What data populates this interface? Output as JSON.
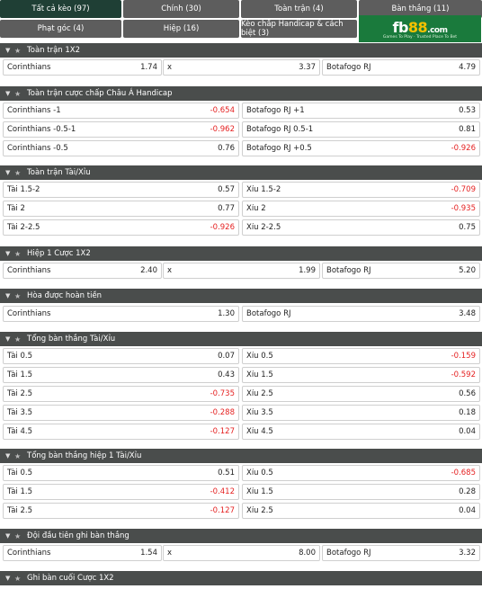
{
  "tabs": [
    {
      "label": "Tất cả kèo (97)",
      "active": true
    },
    {
      "label": "Chính (30)"
    },
    {
      "label": "Toàn trận (4)"
    },
    {
      "label": "Bàn thắng (11)"
    },
    {
      "label": "Phạt góc (4)"
    },
    {
      "label": "Hiệp (16)"
    },
    {
      "label": "Kèo chấp Handicap & cách biệt (3)"
    }
  ],
  "logo": {
    "text": "fb88",
    "brand": "fb",
    "num": "88",
    "suffix": ".com",
    "tagline": "Games To Play · Trusted Place To Bet"
  },
  "colors": {
    "header_bg": "#4a4d4c",
    "tab_bg": "#5d5d5d",
    "tab_active": "#1f3f35",
    "negative": "#e52222",
    "logo_bg": "#1a7a3c"
  },
  "sections": [
    {
      "title": "Toàn trận 1X2",
      "rows": [
        [
          {
            "label": "Corinthians",
            "odd": "1.74"
          },
          {
            "label": "x",
            "odd": "3.37"
          },
          {
            "label": "Botafogo RJ",
            "odd": "4.79"
          }
        ]
      ]
    },
    {
      "title": "Toàn trận cược chấp Châu Á Handicap",
      "rows": [
        [
          {
            "label": "Corinthians -1",
            "odd": "-0.654"
          },
          {
            "label": "Botafogo RJ +1",
            "odd": "0.53"
          }
        ],
        [
          {
            "label": "Corinthians -0.5-1",
            "odd": "-0.962"
          },
          {
            "label": "Botafogo RJ 0.5-1",
            "odd": "0.81"
          }
        ],
        [
          {
            "label": "Corinthians -0.5",
            "odd": "0.76"
          },
          {
            "label": "Botafogo RJ +0.5",
            "odd": "-0.926"
          }
        ]
      ]
    },
    {
      "title": "Toàn trận Tài/Xỉu",
      "rows": [
        [
          {
            "label": "Tài 1.5-2",
            "odd": "0.57"
          },
          {
            "label": "Xỉu 1.5-2",
            "odd": "-0.709"
          }
        ],
        [
          {
            "label": "Tài 2",
            "odd": "0.77"
          },
          {
            "label": "Xỉu 2",
            "odd": "-0.935"
          }
        ],
        [
          {
            "label": "Tài 2-2.5",
            "odd": "-0.926"
          },
          {
            "label": "Xỉu 2-2.5",
            "odd": "0.75"
          }
        ]
      ]
    },
    {
      "title": "Hiệp 1 Cược 1X2",
      "rows": [
        [
          {
            "label": "Corinthians",
            "odd": "2.40"
          },
          {
            "label": "x",
            "odd": "1.99"
          },
          {
            "label": "Botafogo RJ",
            "odd": "5.20"
          }
        ]
      ]
    },
    {
      "title": "Hòa được hoàn tiền",
      "rows": [
        [
          {
            "label": "Corinthians",
            "odd": "1.30"
          },
          {
            "label": "Botafogo RJ",
            "odd": "3.48"
          }
        ]
      ]
    },
    {
      "title": "Tổng bàn thắng Tài/Xỉu",
      "rows": [
        [
          {
            "label": "Tài 0.5",
            "odd": "0.07"
          },
          {
            "label": "Xỉu 0.5",
            "odd": "-0.159"
          }
        ],
        [
          {
            "label": "Tài 1.5",
            "odd": "0.43"
          },
          {
            "label": "Xỉu 1.5",
            "odd": "-0.592"
          }
        ],
        [
          {
            "label": "Tài 2.5",
            "odd": "-0.735"
          },
          {
            "label": "Xỉu 2.5",
            "odd": "0.56"
          }
        ],
        [
          {
            "label": "Tài 3.5",
            "odd": "-0.288"
          },
          {
            "label": "Xỉu 3.5",
            "odd": "0.18"
          }
        ],
        [
          {
            "label": "Tài 4.5",
            "odd": "-0.127"
          },
          {
            "label": "Xỉu 4.5",
            "odd": "0.04"
          }
        ]
      ]
    },
    {
      "title": "Tổng bàn thắng hiệp 1 Tài/Xỉu",
      "rows": [
        [
          {
            "label": "Tài 0.5",
            "odd": "0.51"
          },
          {
            "label": "Xỉu 0.5",
            "odd": "-0.685"
          }
        ],
        [
          {
            "label": "Tài 1.5",
            "odd": "-0.412"
          },
          {
            "label": "Xỉu 1.5",
            "odd": "0.28"
          }
        ],
        [
          {
            "label": "Tài 2.5",
            "odd": "-0.127"
          },
          {
            "label": "Xỉu 2.5",
            "odd": "0.04"
          }
        ]
      ]
    },
    {
      "title": "Đội đầu tiên ghi bàn thắng",
      "rows": [
        [
          {
            "label": "Corinthians",
            "odd": "1.54"
          },
          {
            "label": "x",
            "odd": "8.00"
          },
          {
            "label": "Botafogo RJ",
            "odd": "3.32"
          }
        ]
      ]
    },
    {
      "title": "Ghi bàn cuối Cược 1X2",
      "rows": []
    }
  ]
}
